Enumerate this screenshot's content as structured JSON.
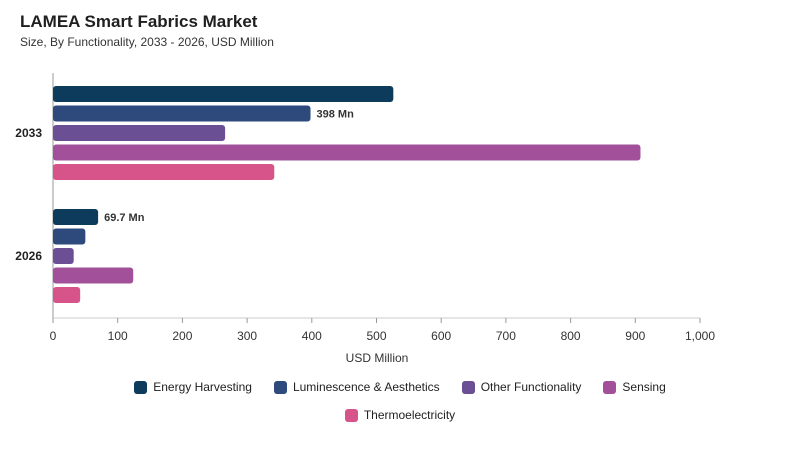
{
  "chart_data": {
    "type": "bar",
    "orientation": "horizontal",
    "title": "LAMEA Smart Fabrics Market",
    "subtitle": "Size, By Functionality, 2033 - 2026, USD Million",
    "xlabel": "USD Million",
    "ylabel": "",
    "xlim": [
      0,
      1000
    ],
    "xticks": [
      "0",
      "100",
      "200",
      "300",
      "400",
      "500",
      "600",
      "700",
      "800",
      "900",
      "1,000"
    ],
    "categories": [
      "2033",
      "2026"
    ],
    "series": [
      {
        "name": "Energy Harvesting",
        "color": "#0d3b5c",
        "values": [
          526,
          69.7
        ]
      },
      {
        "name": "Luminescence & Aesthetics",
        "color": "#2e4a7d",
        "values": [
          398,
          50
        ]
      },
      {
        "name": "Other Functionality",
        "color": "#6a4f94",
        "values": [
          266,
          32
        ]
      },
      {
        "name": "Sensing",
        "color": "#a2509a",
        "values": [
          908,
          124
        ]
      },
      {
        "name": "Thermoelectricity",
        "color": "#d6548a",
        "values": [
          342,
          42
        ]
      }
    ],
    "data_labels": [
      {
        "category": "2033",
        "series": "Luminescence & Aesthetics",
        "text": "398 Mn"
      },
      {
        "category": "2026",
        "series": "Energy Harvesting",
        "text": "69.7 Mn"
      }
    ],
    "legend_position": "bottom",
    "grid": false
  }
}
